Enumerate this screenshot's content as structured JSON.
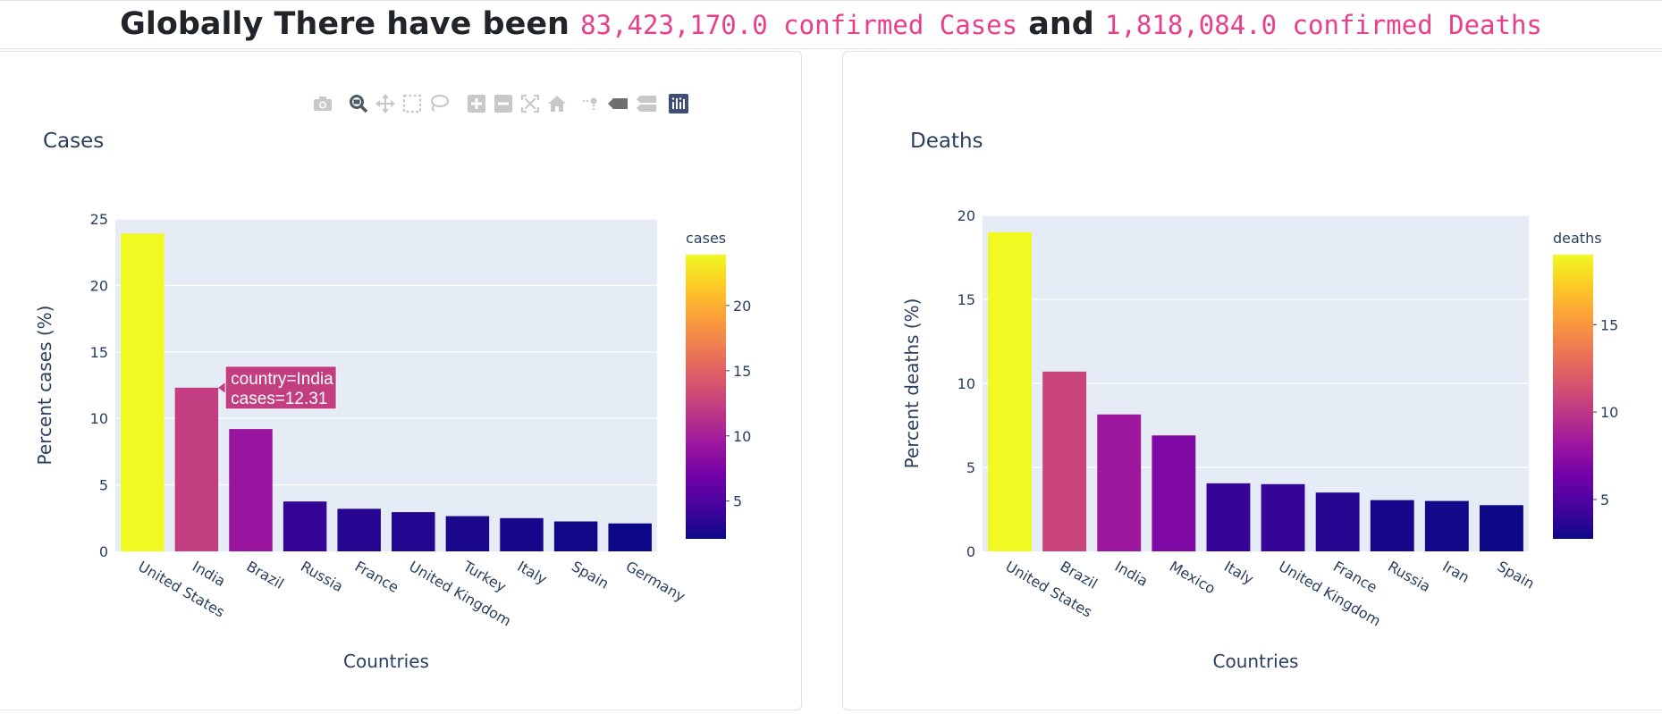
{
  "headline": {
    "prefix": "Globally There have been",
    "cases_value": "83,423,170.0 confirmed Cases",
    "connector": "and",
    "deaths_value": "1,818,084.0 confirmed Deaths"
  },
  "modebar": {
    "icons": [
      "camera-icon",
      "zoom-icon",
      "pan-icon",
      "box-select-icon",
      "lasso-select-icon",
      "zoom-in-icon",
      "zoom-out-icon",
      "autoscale-icon",
      "reset-axes-icon",
      "spike-lines-icon",
      "hover-closest-icon",
      "hover-compare-icon",
      "plotly-logo-icon"
    ]
  },
  "colors": {
    "plot_bg": "#e5ecf6",
    "text": "#2a3f5f",
    "accent_code": "#e83e8c",
    "plasma": [
      "#0d0887",
      "#46039f",
      "#7201a8",
      "#9c179e",
      "#bd3786",
      "#d8576b",
      "#ed7953",
      "#fb9f3a",
      "#fdca26",
      "#f0f921"
    ]
  },
  "chart_data": [
    {
      "type": "bar",
      "title": "Cases",
      "xlabel": "Countries",
      "ylabel": "Percent cases (%)",
      "categories": [
        "United States",
        "India",
        "Brazil",
        "Russia",
        "France",
        "United Kingdom",
        "Turkey",
        "Italy",
        "Spain",
        "Germany"
      ],
      "values": [
        23.9,
        12.31,
        9.2,
        3.75,
        3.2,
        2.95,
        2.65,
        2.5,
        2.25,
        2.1
      ],
      "ylim": [
        0,
        25
      ],
      "yticks": [
        0,
        5,
        10,
        15,
        20,
        25
      ],
      "colorbar": {
        "title": "cases",
        "range": [
          2.1,
          23.9
        ],
        "ticks": [
          5,
          10,
          15,
          20
        ]
      },
      "tooltip": {
        "category": "India",
        "line1": "country=India",
        "line2": "cases=12.31"
      },
      "grid": true,
      "legend": "none"
    },
    {
      "type": "bar",
      "title": "Deaths",
      "xlabel": "Countries",
      "ylabel": "Percent deaths (%)",
      "categories": [
        "United States",
        "Brazil",
        "India",
        "Mexico",
        "Italy",
        "United Kingdom",
        "France",
        "Russia",
        "Iran",
        "Spain"
      ],
      "values": [
        19.0,
        10.7,
        8.15,
        6.9,
        4.05,
        4.0,
        3.5,
        3.05,
        3.0,
        2.75
      ],
      "ylim": [
        0,
        20
      ],
      "yticks": [
        0,
        5,
        10,
        15,
        20
      ],
      "colorbar": {
        "title": "deaths",
        "range": [
          2.75,
          19.0
        ],
        "ticks": [
          5,
          10,
          15
        ]
      },
      "grid": true,
      "legend": "none"
    }
  ]
}
